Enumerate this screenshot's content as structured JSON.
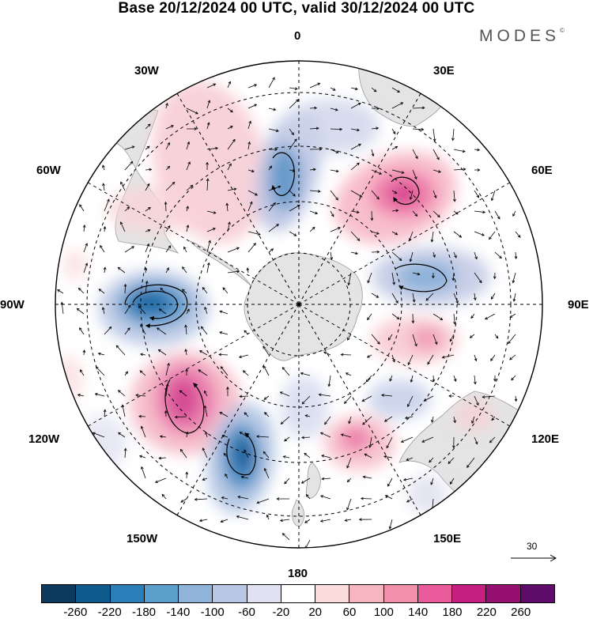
{
  "title": "Base 20/12/2024 00 UTC, valid 30/12/2024 00 UTC",
  "brand": "MODES",
  "brand_mark": "©",
  "longitude_labels": {
    "top": "0",
    "top_left": "30W",
    "top_right": "30E",
    "upper_left": "60W",
    "upper_right": "60E",
    "left": "90W",
    "right": "90E",
    "lower_left": "120W",
    "lower_right": "120E",
    "bottom_left": "150W",
    "bottom_right": "150E",
    "bottom": "180"
  },
  "vector_reference": "30",
  "colorbar": {
    "colors": [
      "#0b3a5e",
      "#0f5a8c",
      "#2b7fb8",
      "#5b9fcc",
      "#8fb3d9",
      "#b8c7e4",
      "#e1e2f1",
      "#ffffff",
      "#fbdcdc",
      "#f6b6c0",
      "#f28fab",
      "#e95b9b",
      "#c71e82",
      "#951070",
      "#5e0b6a"
    ],
    "tick_labels": [
      "-260",
      "-220",
      "-180",
      "-140",
      "-100",
      "-60",
      "-20",
      "20",
      "60",
      "100",
      "140",
      "180",
      "220",
      "260"
    ]
  },
  "colors": {
    "land": "#e6e6e6",
    "grid": "#000000"
  }
}
